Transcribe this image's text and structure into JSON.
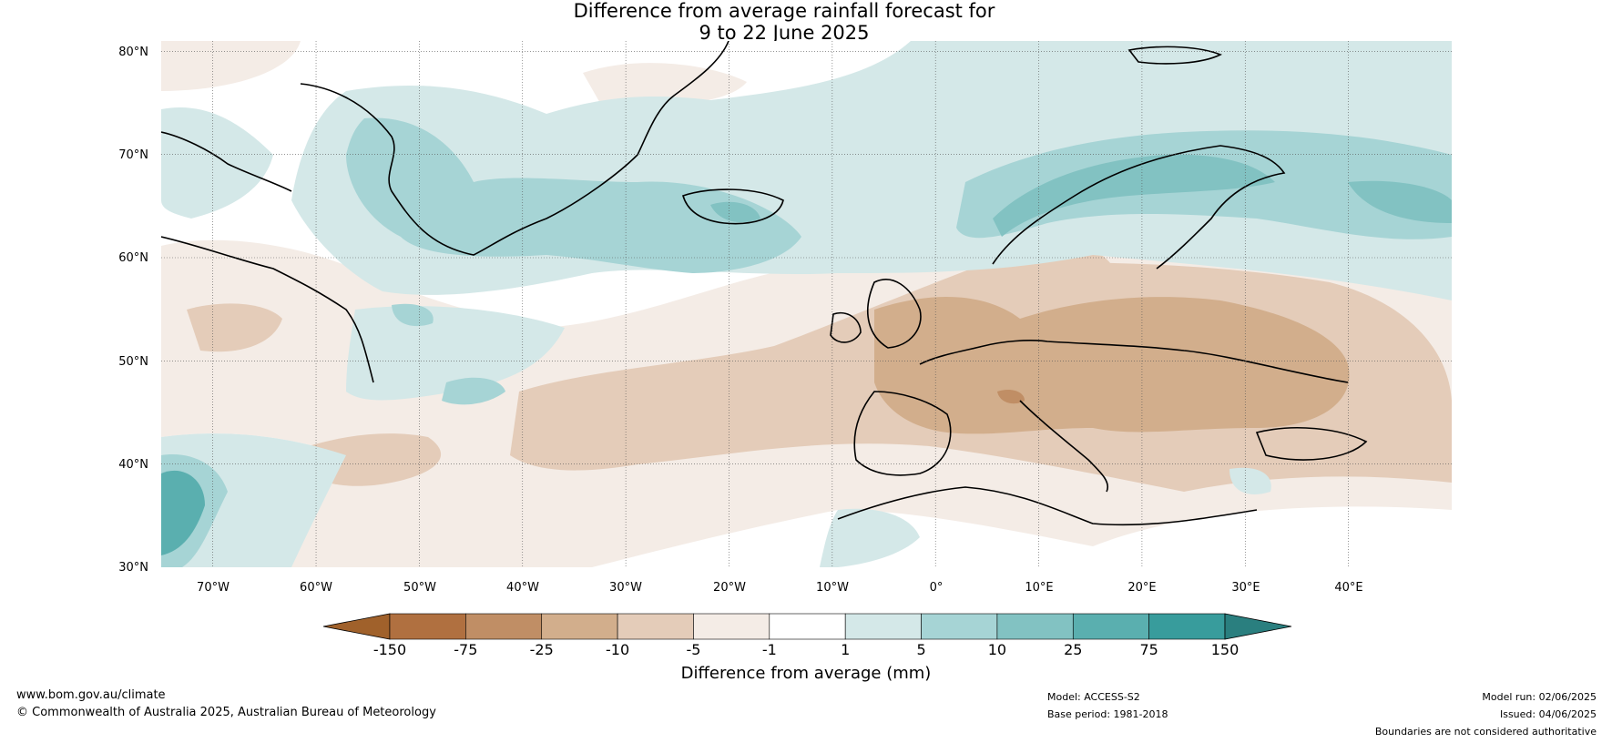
{
  "title": {
    "line1": "Difference from average rainfall forecast for",
    "line2": "9 to 22 June 2025"
  },
  "map": {
    "lat_ticks": [
      "80°N",
      "70°N",
      "60°N",
      "50°N",
      "40°N",
      "30°N"
    ],
    "lon_ticks": [
      "70°W",
      "60°W",
      "50°W",
      "40°W",
      "30°W",
      "20°W",
      "10°W",
      "0°",
      "10°E",
      "20°E",
      "30°E",
      "40°E"
    ],
    "extent": {
      "lon": [
        -75,
        50
      ],
      "lat": [
        30,
        81
      ]
    }
  },
  "colorbar": {
    "label": "Difference from average (mm)",
    "ticks": [
      "-150",
      "-75",
      "-25",
      "-10",
      "-5",
      "-1",
      "1",
      "5",
      "10",
      "25",
      "75",
      "150"
    ],
    "colors": [
      "#a0612b",
      "#b07040",
      "#c08e65",
      "#d2ae8c",
      "#e4ccb9",
      "#f4ece6",
      "#ffffff",
      "#d4e8e8",
      "#a6d4d5",
      "#82c2c2",
      "#5aafaf",
      "#389c9c",
      "#2a7f7f"
    ]
  },
  "footer": {
    "website": "www.bom.gov.au/climate",
    "copyright": "© Commonwealth of Australia 2025, Australian Bureau of Meteorology",
    "model": "Model: ACCESS-S2",
    "base_period": "Base period: 1981-2018",
    "model_run": "Model run: 02/06/2025",
    "issued": "Issued: 04/06/2025",
    "boundaries_note": "Boundaries are not considered authoritative"
  }
}
